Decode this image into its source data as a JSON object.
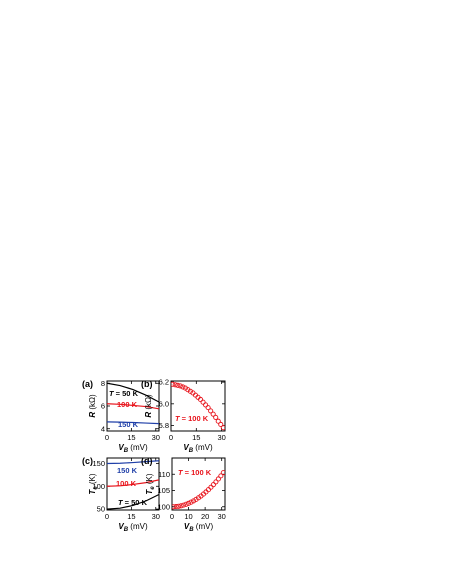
{
  "colors": {
    "black": "#000000",
    "red": "#e8141c",
    "blue": "#1f3fa8"
  },
  "chart_data": [
    {
      "panel": "(a)",
      "type": "line",
      "xlabel_main": "V",
      "xlabel_sub": "B",
      "xlabel_unit": " (mV)",
      "ylabel_main": "R",
      "ylabel_unit": " (kΩ)",
      "xlim": [
        0,
        32
      ],
      "ylim": [
        3.8,
        8.2
      ],
      "xticks": [
        0,
        15,
        30
      ],
      "yticks": [
        4,
        6,
        8
      ],
      "xtick_labels": [
        "0",
        "15",
        "30"
      ],
      "ytick_labels": [
        "4",
        "6",
        "8"
      ],
      "series": [
        {
          "name": "T = 50 K",
          "color": "#000000",
          "x": [
            0,
            8,
            16,
            24,
            32
          ],
          "y": [
            8.0,
            7.8,
            7.45,
            6.95,
            6.35
          ]
        },
        {
          "name": "100 K",
          "color": "#e8141c",
          "x": [
            0,
            8,
            16,
            24,
            32
          ],
          "y": [
            6.2,
            6.15,
            6.05,
            5.95,
            5.75
          ]
        },
        {
          "name": "150 K",
          "color": "#1f3fa8",
          "x": [
            0,
            8,
            16,
            24,
            32
          ],
          "y": [
            4.6,
            4.58,
            4.55,
            4.5,
            4.45
          ]
        }
      ],
      "annotations": [
        {
          "text_main": "T",
          "text_rest": " = 50 K",
          "color": "#000000"
        },
        {
          "text_main": "",
          "text_rest": "100 K",
          "color": "#e8141c"
        },
        {
          "text_main": "",
          "text_rest": "150 K",
          "color": "#1f3fa8"
        }
      ]
    },
    {
      "panel": "(b)",
      "type": "scatter",
      "xlabel_main": "V",
      "xlabel_sub": "B",
      "xlabel_unit": " (mV)",
      "ylabel_main": "R",
      "ylabel_unit": " (kΩ)",
      "xlim": [
        0,
        32
      ],
      "ylim": [
        5.75,
        6.21
      ],
      "xticks": [
        0,
        15,
        30
      ],
      "yticks": [
        5.8,
        6.0,
        6.2
      ],
      "xtick_labels": [
        "0",
        "15",
        "30"
      ],
      "ytick_labels": [
        "5.8",
        "6.0",
        "6.2"
      ],
      "series": [
        {
          "name": "T = 100 K",
          "color": "#e8141c",
          "x": [
            1.0,
            2.5,
            4.0,
            5.5,
            7.0,
            8.5,
            10.0,
            11.5,
            13.0,
            14.5,
            16.0,
            17.5,
            19.0,
            20.5,
            22.0,
            23.5,
            25.0,
            26.5,
            28.0,
            29.5,
            31.0
          ],
          "y": [
            6.18,
            6.175,
            6.17,
            6.165,
            6.155,
            6.145,
            6.13,
            6.115,
            6.1,
            6.08,
            6.06,
            6.04,
            6.015,
            5.99,
            5.965,
            5.935,
            5.905,
            5.875,
            5.84,
            5.81,
            5.78
          ]
        }
      ],
      "annotations": [
        {
          "text_main": "T",
          "text_rest": " = 100 K",
          "color": "#e8141c"
        }
      ]
    },
    {
      "panel": "(c)",
      "type": "line",
      "xlabel_main": "V",
      "xlabel_sub": "B",
      "xlabel_unit": " (mV)",
      "ylabel_main": "T",
      "ylabel_sub": "e",
      "ylabel_unit": " (K)",
      "xlim": [
        0,
        32
      ],
      "ylim": [
        48,
        162
      ],
      "xticks": [
        0,
        15,
        30
      ],
      "yticks": [
        50,
        100,
        150
      ],
      "xtick_labels": [
        "0",
        "15",
        "30"
      ],
      "ytick_labels": [
        "50",
        "100",
        "150"
      ],
      "series": [
        {
          "name": "T = 50 K",
          "color": "#000000",
          "x": [
            0,
            8,
            16,
            24,
            32
          ],
          "y": [
            50,
            52,
            58,
            68,
            82
          ]
        },
        {
          "name": "100 K",
          "color": "#e8141c",
          "x": [
            0,
            8,
            16,
            24,
            32
          ],
          "y": [
            100,
            101,
            104,
            108,
            114
          ]
        },
        {
          "name": "150 K",
          "color": "#1f3fa8",
          "x": [
            0,
            8,
            16,
            24,
            32
          ],
          "y": [
            150,
            150.5,
            152,
            154,
            156
          ]
        }
      ],
      "annotations": [
        {
          "text_main": "",
          "text_rest": "150 K",
          "color": "#1f3fa8"
        },
        {
          "text_main": "",
          "text_rest": "100 K",
          "color": "#e8141c"
        },
        {
          "text_main": "T",
          "text_rest": " = 50 K",
          "color": "#000000"
        }
      ]
    },
    {
      "panel": "(d)",
      "type": "scatter",
      "xlabel_main": "V",
      "xlabel_sub": "B",
      "xlabel_unit": " (mV)",
      "ylabel_main": "T",
      "ylabel_sub": "e",
      "ylabel_unit": " (K)",
      "xlim": [
        0,
        32
      ],
      "ylim": [
        99,
        115
      ],
      "xticks": [
        0,
        10,
        20,
        30
      ],
      "yticks": [
        100,
        105,
        110
      ],
      "xtick_labels": [
        "0",
        "10",
        "20",
        "30"
      ],
      "ytick_labels": [
        "100",
        "105",
        "110"
      ],
      "series": [
        {
          "name": "T = 100 K",
          "color": "#e8141c",
          "x": [
            1.0,
            2.5,
            4.0,
            5.5,
            7.0,
            8.5,
            10.0,
            11.5,
            13.0,
            14.5,
            16.0,
            17.5,
            19.0,
            20.5,
            22.0,
            23.5,
            25.0,
            26.5,
            28.0,
            29.5,
            31.0
          ],
          "y": [
            100.0,
            100.05,
            100.15,
            100.3,
            100.5,
            100.75,
            101.05,
            101.4,
            101.8,
            102.25,
            102.75,
            103.3,
            103.9,
            104.55,
            105.25,
            106.0,
            106.8,
            107.65,
            108.55,
            109.5,
            110.5
          ]
        }
      ],
      "annotations": [
        {
          "text_main": "T",
          "text_rest": " = 100 K",
          "color": "#e8141c"
        }
      ]
    }
  ]
}
